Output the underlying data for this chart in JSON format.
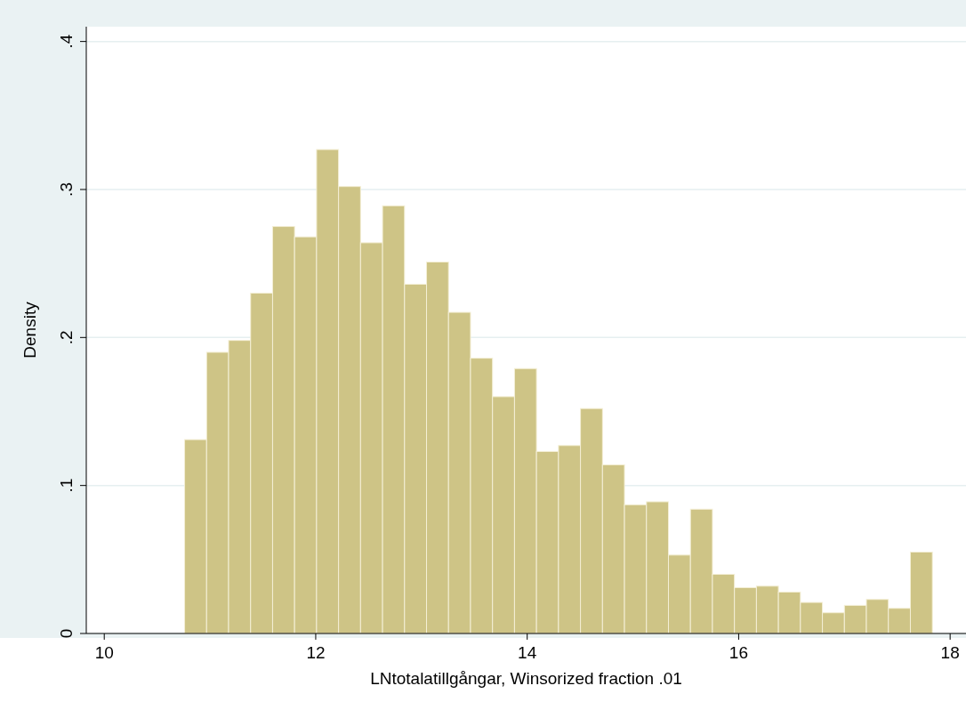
{
  "chart_data": {
    "type": "histogram",
    "xlabel": "LNtotalatillgångar, Winsorized fraction .01",
    "ylabel": "Density",
    "bins": [
      10.76,
      10.968,
      11.176,
      11.384,
      11.592,
      11.8,
      12.008,
      12.216,
      12.424,
      12.632,
      12.84,
      13.048,
      13.256,
      13.464,
      13.672,
      13.88,
      14.088,
      14.296,
      14.504,
      14.712,
      14.92,
      15.128,
      15.336,
      15.544,
      15.752,
      15.96,
      16.168,
      16.376,
      16.584,
      16.792,
      17.0,
      17.208,
      17.416,
      17.624,
      17.832
    ],
    "values": [
      0.131,
      0.19,
      0.198,
      0.23,
      0.275,
      0.268,
      0.327,
      0.302,
      0.264,
      0.289,
      0.236,
      0.251,
      0.217,
      0.186,
      0.16,
      0.179,
      0.123,
      0.127,
      0.152,
      0.114,
      0.087,
      0.089,
      0.053,
      0.084,
      0.04,
      0.031,
      0.032,
      0.028,
      0.021,
      0.014,
      0.019,
      0.023,
      0.017,
      0.055
    ],
    "color": "#cec486",
    "xlim": [
      9.83,
      18.15
    ],
    "xticks": [
      10,
      12,
      14,
      16,
      18
    ],
    "ylim": [
      0,
      0.41
    ],
    "yticks": [
      {
        "value": 0,
        "label": "0"
      },
      {
        "value": 0.1,
        "label": ".1"
      },
      {
        "value": 0.2,
        "label": ".2"
      },
      {
        "value": 0.3,
        "label": ".3"
      },
      {
        "value": 0.4,
        "label": ".4"
      }
    ],
    "grid": "y"
  }
}
